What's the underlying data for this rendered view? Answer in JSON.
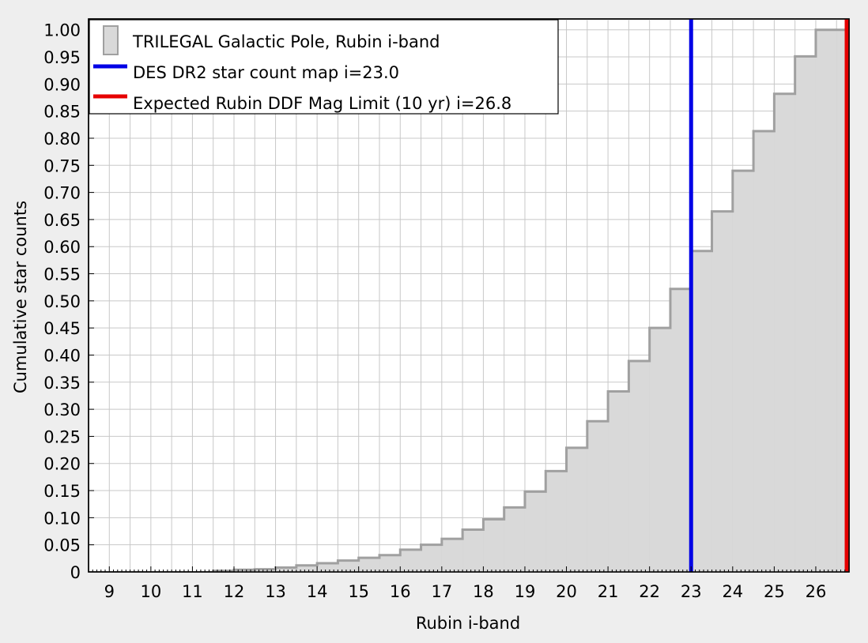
{
  "chart_data": {
    "type": "area",
    "title": "",
    "xlabel": "Rubin i-band",
    "ylabel": "Cumulative star counts",
    "xlim": [
      8.5,
      26.8
    ],
    "ylim": [
      0,
      1.02
    ],
    "xticks": [
      "9",
      "10",
      "11",
      "12",
      "13",
      "14",
      "15",
      "16",
      "17",
      "18",
      "19",
      "20",
      "21",
      "22",
      "23",
      "24",
      "25",
      "26"
    ],
    "yticks": [
      "0",
      "0.05",
      "0.10",
      "0.15",
      "0.20",
      "0.25",
      "0.30",
      "0.35",
      "0.40",
      "0.45",
      "0.50",
      "0.55",
      "0.60",
      "0.65",
      "0.70",
      "0.75",
      "0.80",
      "0.85",
      "0.90",
      "0.95",
      "1.00"
    ],
    "grid": true,
    "legend_position": "top-left",
    "series": [
      {
        "name": "TRILEGAL Galactic Pole, Rubin i-band",
        "kind": "cumulative-step-histogram",
        "fill_color": "#d9d9d9",
        "line_color": "#a0a0a0",
        "bin_edges": [
          11.5,
          12.0,
          12.5,
          13.0,
          13.5,
          14.0,
          14.5,
          15.0,
          15.5,
          16.0,
          16.5,
          17.0,
          17.5,
          18.0,
          18.5,
          19.0,
          19.5,
          20.0,
          20.5,
          21.0,
          21.5,
          22.0,
          22.5,
          23.0,
          23.5,
          24.0,
          24.5,
          25.0,
          25.5,
          26.0,
          26.5,
          26.8
        ],
        "values": [
          0.002,
          0.004,
          0.005,
          0.008,
          0.012,
          0.016,
          0.021,
          0.026,
          0.031,
          0.041,
          0.05,
          0.061,
          0.078,
          0.097,
          0.119,
          0.148,
          0.186,
          0.229,
          0.278,
          0.333,
          0.389,
          0.45,
          0.522,
          0.592,
          0.665,
          0.74,
          0.813,
          0.882,
          0.951,
          1.0,
          1.0
        ]
      },
      {
        "name": "DES DR2 star count map i=23.0",
        "kind": "vertical-line",
        "x": 23.0,
        "color": "#0000e6"
      },
      {
        "name": "Expected Rubin DDF Mag Limit (10 yr) i=26.8",
        "kind": "vertical-line",
        "x": 26.8,
        "color": "#e60000"
      }
    ]
  }
}
